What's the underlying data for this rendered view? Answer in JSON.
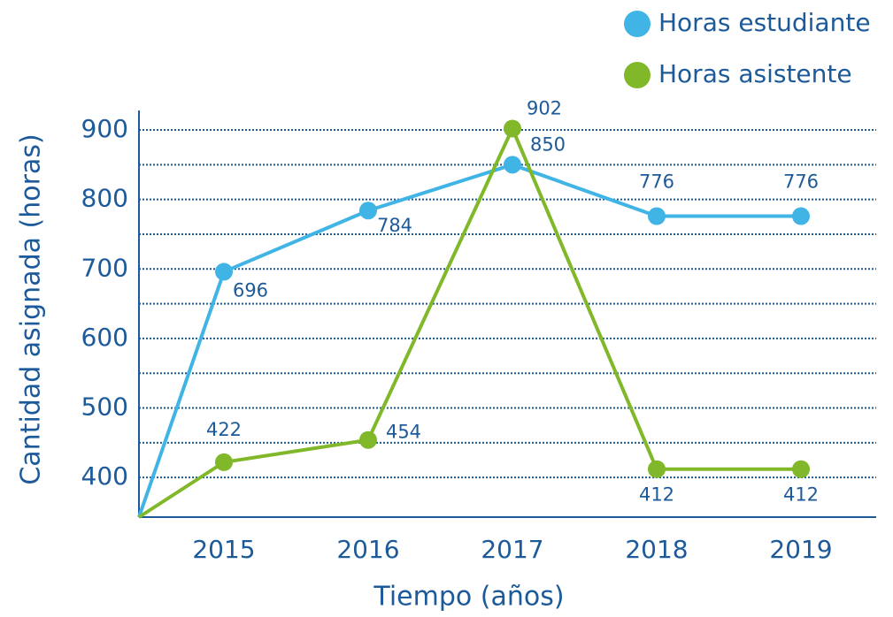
{
  "chart_data": {
    "type": "line",
    "x_label": "Tiempo (años)",
    "y_label": "Cantidad asignada (horas)",
    "categories": [
      null,
      "2015",
      "2016",
      "2017",
      "2018",
      "2019"
    ],
    "series": [
      {
        "name": "Horas estudiante",
        "color": "#3fb4e5",
        "values": [
          343,
          696,
          784,
          850,
          776,
          776
        ],
        "value_labels": [
          null,
          "696",
          "784",
          "850",
          "776",
          "776"
        ]
      },
      {
        "name": "Horas asistente",
        "color": "#80b82a",
        "values": [
          343,
          422,
          454,
          902,
          412,
          412
        ],
        "value_labels": [
          null,
          "422",
          "454",
          "902",
          "412",
          "412"
        ]
      }
    ],
    "ylim": [
      343,
      928
    ],
    "yticks": [
      400,
      500,
      600,
      700,
      800,
      900
    ],
    "grid_lines": [
      400,
      450,
      500,
      550,
      600,
      650,
      700,
      750,
      800,
      850,
      900
    ],
    "grid": true,
    "legend": "top-right"
  }
}
